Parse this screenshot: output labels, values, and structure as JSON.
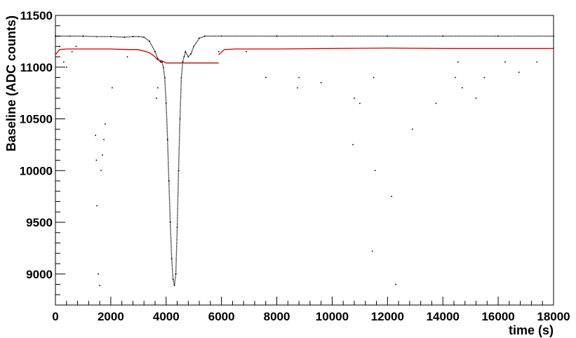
{
  "chart_data": {
    "type": "scatter",
    "xlabel": "time (s)",
    "ylabel": "Baseline (ADC counts)",
    "xlim": [
      0,
      18000
    ],
    "ylim": [
      8700,
      11500
    ],
    "x_ticks": [
      0,
      2000,
      4000,
      6000,
      8000,
      10000,
      12000,
      14000,
      16000,
      18000
    ],
    "y_ticks": [
      9000,
      9500,
      10000,
      10500,
      11000,
      11500
    ],
    "grid": false,
    "colors": {
      "baseline": "#000000",
      "reference": "#cc0000"
    },
    "series": [
      {
        "style": "dense-points",
        "color": "#000000",
        "x": [
          0,
          500,
          1000,
          1500,
          2000,
          2500,
          2800,
          3000,
          3200,
          3400,
          3600,
          3700,
          3800,
          3850,
          3900,
          3950,
          4000,
          4050,
          4100,
          4150,
          4200,
          4250,
          4300,
          4350,
          4400,
          4450,
          4500,
          4550,
          4600,
          4650,
          4700,
          4800,
          4900,
          5000,
          5200,
          5400,
          6000,
          8000,
          10000,
          12000,
          14000,
          16000,
          18000
        ],
        "y": [
          11300,
          11300,
          11300,
          11295,
          11295,
          11290,
          11295,
          11295,
          11290,
          11250,
          11150,
          11080,
          11050,
          11050,
          11000,
          10900,
          10650,
          10300,
          9900,
          9500,
          9150,
          8950,
          8890,
          9000,
          9450,
          10000,
          10500,
          10900,
          11050,
          11100,
          11150,
          11100,
          11130,
          11200,
          11280,
          11300,
          11300,
          11300,
          11300,
          11300,
          11300,
          11300,
          11300
        ]
      },
      {
        "style": "outlier-points",
        "color": "#000000",
        "x": [
          150,
          300,
          400,
          600,
          750,
          1450,
          1480,
          1500,
          1550,
          1600,
          1650,
          1700,
          1750,
          1800,
          2050,
          2600,
          3650,
          3700,
          5900,
          6900,
          7600,
          8750,
          8800,
          9600,
          10750,
          10800,
          11000,
          11450,
          11500,
          11550,
          12150,
          12300,
          12900,
          13750,
          14450,
          14550,
          14700,
          15200,
          15500,
          16250,
          16750,
          17400
        ],
        "y": [
          11200,
          11050,
          11000,
          11150,
          11200,
          10340,
          10100,
          9660,
          9000,
          8890,
          10000,
          10150,
          10300,
          10450,
          10800,
          11100,
          10700,
          10800,
          11150,
          11150,
          10900,
          10800,
          10900,
          10850,
          10250,
          10700,
          10650,
          9220,
          10900,
          10000,
          9750,
          8900,
          10400,
          10650,
          10900,
          11050,
          10800,
          10700,
          10900,
          11050,
          10950,
          11050
        ]
      },
      {
        "style": "line",
        "color": "#cc0000",
        "x": [
          0,
          150,
          400,
          1000,
          2000,
          2600,
          3000,
          3400,
          3600,
          3700,
          3850,
          4000,
          5000,
          5900
        ],
        "y": [
          11120,
          11170,
          11175,
          11175,
          11175,
          11170,
          11170,
          11140,
          11100,
          11070,
          11060,
          11040,
          11040,
          11040
        ]
      },
      {
        "style": "line",
        "color": "#cc0000",
        "x": [
          5900,
          6100,
          6500,
          8000,
          10000,
          12000,
          14000,
          16000,
          18000
        ],
        "y": [
          11120,
          11170,
          11175,
          11175,
          11180,
          11185,
          11180,
          11180,
          11180
        ]
      }
    ]
  }
}
